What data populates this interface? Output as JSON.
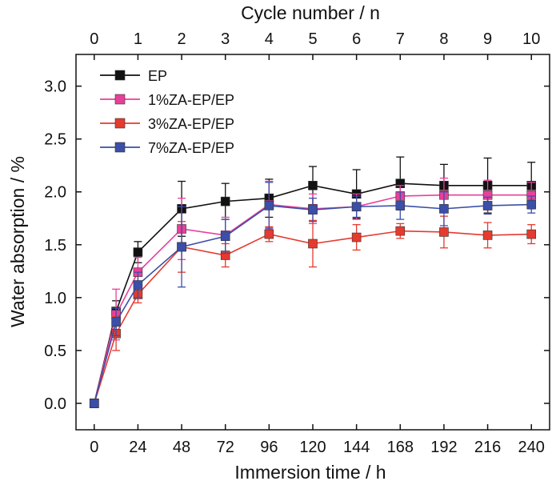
{
  "chart_data": {
    "type": "line",
    "title": "",
    "xlabel": "Immersion time / h",
    "ylabel": "Water absorption / %",
    "x2label": "Cycle number / n",
    "x": [
      0,
      12,
      24,
      48,
      72,
      96,
      120,
      144,
      168,
      192,
      216,
      240
    ],
    "xticks": [
      0,
      24,
      48,
      72,
      96,
      120,
      144,
      168,
      192,
      216,
      240
    ],
    "x2ticks": [
      0,
      1,
      2,
      3,
      4,
      5,
      6,
      7,
      8,
      9,
      10
    ],
    "yticks": [
      "0.0",
      "0.5",
      "1.0",
      "1.5",
      "2.0",
      "2.5",
      "3.0"
    ],
    "xlim": [
      -10,
      250
    ],
    "ylim": [
      -0.25,
      3.3
    ],
    "grid": false,
    "legend_position": "top-left",
    "series": [
      {
        "name": "EP",
        "color": "#111111",
        "values": [
          0.0,
          0.87,
          1.43,
          1.84,
          1.91,
          1.94,
          2.06,
          1.98,
          2.08,
          2.06,
          2.06,
          2.06
        ],
        "errors": [
          0,
          0.1,
          0.1,
          0.26,
          0.17,
          0.18,
          0.18,
          0.23,
          0.25,
          0.2,
          0.26,
          0.22
        ]
      },
      {
        "name": "1%ZA-EP/EP",
        "color": "#e8409a",
        "values": [
          0.0,
          0.84,
          1.24,
          1.65,
          1.59,
          1.88,
          1.84,
          1.86,
          1.96,
          1.97,
          1.97,
          1.97
        ],
        "errors": [
          0,
          0.24,
          0.14,
          0.29,
          0.17,
          0.22,
          0.14,
          0.12,
          0.1,
          0.16,
          0.14,
          0.12
        ]
      },
      {
        "name": "3%ZA-EP/EP",
        "color": "#e53a2e",
        "values": [
          0.0,
          0.66,
          1.03,
          1.48,
          1.4,
          1.6,
          1.51,
          1.57,
          1.63,
          1.62,
          1.59,
          1.6
        ],
        "errors": [
          0,
          0.16,
          0.08,
          0.24,
          0.11,
          0.07,
          0.22,
          0.12,
          0.07,
          0.15,
          0.12,
          0.09
        ]
      },
      {
        "name": "7%ZA-EP/EP",
        "color": "#3b4ea8",
        "values": [
          0.0,
          0.77,
          1.12,
          1.48,
          1.58,
          1.87,
          1.83,
          1.86,
          1.87,
          1.84,
          1.87,
          1.88
        ],
        "errors": [
          0,
          0.13,
          0.12,
          0.38,
          0.16,
          0.22,
          0.11,
          0.1,
          0.13,
          0.16,
          0.08,
          0.08
        ]
      }
    ]
  }
}
